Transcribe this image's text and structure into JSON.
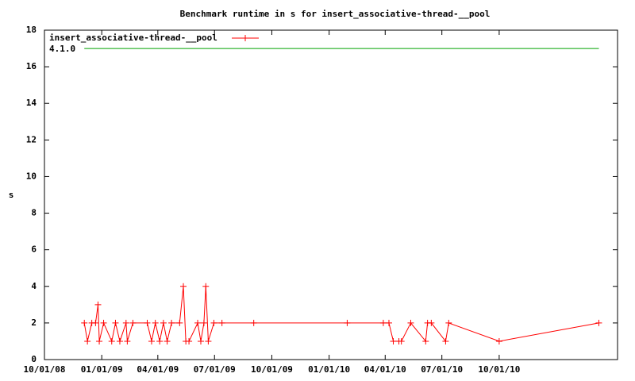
{
  "chart_data": {
    "type": "line",
    "title": "Benchmark runtime in s for insert_associative-thread-__pool",
    "y_label": "s",
    "xlim": [
      "10/01/08",
      "04/09/11"
    ],
    "xticks": [
      "10/01/08",
      "01/01/09",
      "04/01/09",
      "07/01/09",
      "10/01/09",
      "01/01/10",
      "04/01/10",
      "07/01/10",
      "10/01/10"
    ],
    "ylim": [
      0,
      18
    ],
    "yticks": [
      0,
      2,
      4,
      6,
      8,
      10,
      12,
      14,
      16,
      18
    ],
    "series": [
      {
        "name": "insert_associative-thread-__pool",
        "color": "#ff0000",
        "markers": true,
        "x": [
          "12/04/08",
          "12/09/08",
          "12/16/08",
          "12/22/08",
          "12/26/08",
          "12/28/08",
          "01/04/09",
          "01/17/09",
          "01/23/09",
          "01/30/09",
          "02/09/09",
          "02/11/09",
          "02/20/09",
          "03/15/09",
          "03/22/09",
          "03/28/09",
          "04/04/09",
          "04/10/09",
          "04/16/09",
          "04/23/09",
          "05/06/09",
          "05/12/09",
          "05/16/09",
          "05/21/09",
          "06/04/09",
          "06/09/09",
          "06/14/09",
          "06/17/09",
          "06/21/09",
          "06/30/09",
          "07/13/09",
          "09/02/09",
          "01/30/10",
          "03/29/10",
          "04/07/10",
          "04/14/10",
          "04/23/10",
          "04/27/10",
          "05/12/10",
          "06/05/10",
          "06/08/10",
          "06/14/10",
          "07/07/10",
          "07/12/10",
          "10/01/10",
          "03/10/11"
        ],
        "values": [
          2,
          1,
          2,
          2,
          3,
          1,
          2,
          1,
          2,
          1,
          2,
          1,
          2,
          2,
          1,
          2,
          1,
          2,
          1,
          2,
          2,
          4,
          1,
          1,
          2,
          1,
          2,
          4,
          1,
          2,
          2,
          2,
          2,
          2,
          2,
          1,
          1,
          1,
          2,
          1,
          2,
          2,
          1,
          2,
          1,
          2
        ]
      },
      {
        "name": "4.1.0",
        "color": "#00a000",
        "markers": false,
        "x": [
          "12/04/08",
          "03/10/11"
        ],
        "values": [
          17,
          17
        ]
      }
    ]
  }
}
